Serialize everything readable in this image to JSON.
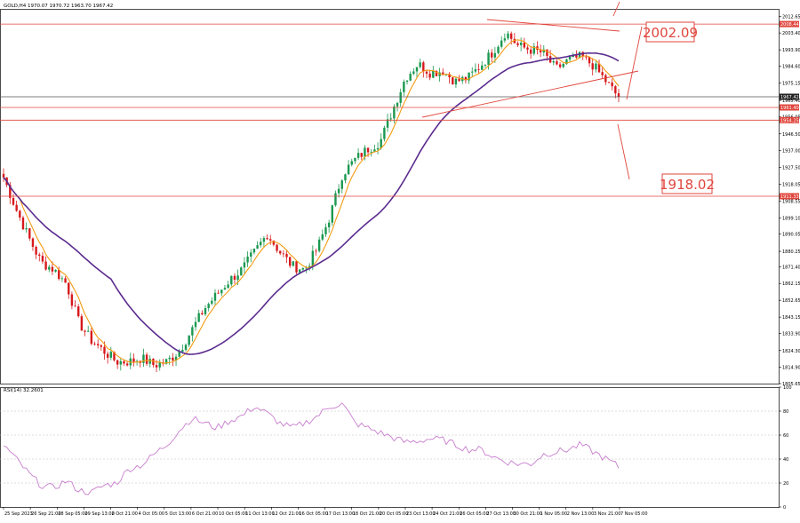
{
  "header": {
    "symbol_title": "GOLD,H4  1970.07 1970.72 1963.70 1967.42",
    "rsi_title": "RSI(14) 32.2601"
  },
  "colors": {
    "bull": "#1a9850",
    "bear": "#d7191c",
    "ma_fast": "#f39c12",
    "ma_slow": "#5b2c8f",
    "rsi": "#c77dcd",
    "level_line": "#e0463d",
    "price_line": "#555555"
  },
  "annotations": {
    "upper_target": "2002.09",
    "lower_target": "1918.02"
  },
  "chart_data": [
    {
      "type": "candlestick",
      "title": "GOLD,H4  1970.07 1970.72 1963.70 1967.42",
      "ylim": [
        1805.65,
        2017.0
      ],
      "y_ticks": [
        "2012.65",
        "2003.40",
        "1993.90",
        "1984.60",
        "1975.15",
        "1965.40",
        "1956.05",
        "1946.50",
        "1937.00",
        "1927.50",
        "1918.05",
        "1908.55",
        "1899.10",
        "1890.05",
        "1880.25",
        "1871.40",
        "1862.15",
        "1852.65",
        "1843.15",
        "1833.90",
        "1824.30",
        "1814.90",
        "1805.65"
      ],
      "x_ticks": [
        "25 Sep 2023",
        "26 Sep 21:00",
        "28 Sep 05:00",
        "29 Sep 13:00",
        "2 Oct 21:00",
        "4 Oct 05:00",
        "5 Oct 13:00",
        "6 Oct 21:00",
        "10 Oct 05:00",
        "11 Oct 13:00",
        "12 Oct 21:00",
        "16 Oct 05:00",
        "17 Oct 13:00",
        "18 Oct 21:00",
        "20 Oct 05:00",
        "23 Oct 13:00",
        "24 Oct 21:00",
        "26 Oct 05:00",
        "27 Oct 13:00",
        "30 Oct 21:00",
        "1 Nov 05:00",
        "2 Nov 13:00",
        "3 Nov 21:00",
        "7 Nov 05:00"
      ],
      "horizontal_levels": [
        {
          "label": "2008.44",
          "value": 2008.44
        },
        {
          "label": "1961.40",
          "value": 1961.4
        },
        {
          "label": "1954.25",
          "value": 1954.25
        },
        {
          "label": "1911.33",
          "value": 1911.33
        }
      ],
      "current_price": {
        "label": "1967.42",
        "value": 1967.42
      },
      "anchors": [
        1922,
        1904,
        1888,
        1874,
        1870,
        1862,
        1840,
        1830,
        1824,
        1818,
        1818,
        1820,
        1816,
        1818,
        1824,
        1836,
        1848,
        1856,
        1864,
        1870,
        1880,
        1890,
        1880,
        1872,
        1870,
        1882,
        1900,
        1924,
        1932,
        1938,
        1942,
        1960,
        1978,
        1986,
        1981,
        1982,
        1976,
        1978,
        1985,
        1993,
        2004,
        1996,
        1994,
        1992,
        1983,
        1988,
        1990,
        1985,
        1976,
        1967
      ]
    },
    {
      "type": "line",
      "title": "RSI(14) 32.2601",
      "ylim": [
        0,
        100
      ],
      "y_ticks": [
        "100",
        "80",
        "60",
        "40",
        "20",
        "0"
      ],
      "anchors": [
        52,
        40,
        28,
        18,
        16,
        22,
        14,
        12,
        18,
        20,
        32,
        35,
        44,
        52,
        64,
        74,
        70,
        66,
        72,
        76,
        84,
        78,
        70,
        66,
        70,
        76,
        84,
        86,
        70,
        66,
        62,
        58,
        54,
        55,
        57,
        56,
        52,
        48,
        48,
        42,
        38,
        36,
        36,
        44,
        46,
        48,
        52,
        46,
        40,
        34
      ]
    }
  ]
}
